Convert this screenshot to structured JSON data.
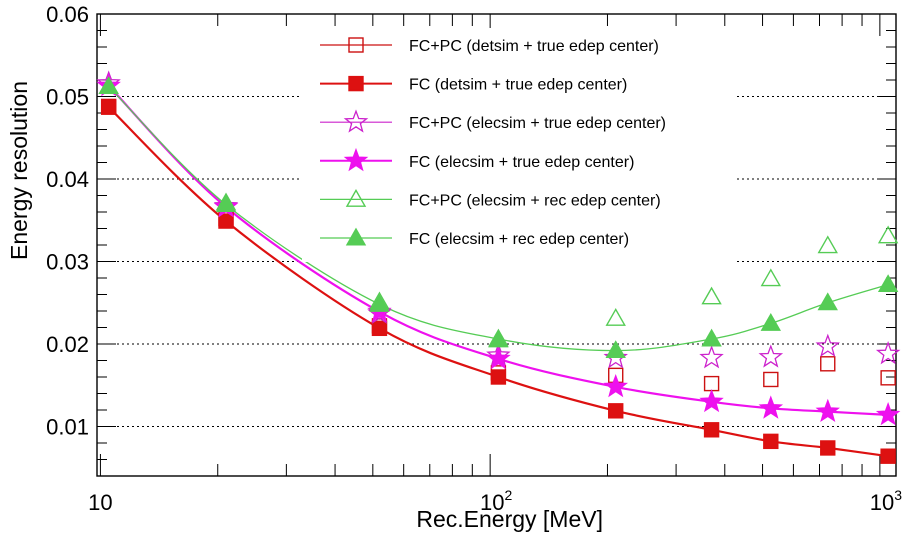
{
  "chart_data": {
    "type": "scatter",
    "title": "",
    "xlabel": "Rec.Energy [MeV]",
    "ylabel": "Energy resolution",
    "xscale": "log",
    "xlim": [
      9.8,
      1100
    ],
    "ylim": [
      0.004,
      0.06
    ],
    "grid": "horizontal dotted",
    "legend_position": "top-right",
    "x_ticks": [
      {
        "value": 10,
        "base": "10",
        "exp": ""
      },
      {
        "value": 100,
        "base": "10",
        "exp": "2"
      },
      {
        "value": 1000,
        "base": "10",
        "exp": "3"
      }
    ],
    "y_ticks": [
      {
        "value": 0.01,
        "label": "0.01"
      },
      {
        "value": 0.02,
        "label": "0.02"
      },
      {
        "value": 0.03,
        "label": "0.03"
      },
      {
        "value": 0.04,
        "label": "0.04"
      },
      {
        "value": 0.05,
        "label": "0.05"
      },
      {
        "value": 0.06,
        "label": "0.06"
      }
    ],
    "series": [
      {
        "name": "FC+PC (detsim + true edep center)",
        "marker": "open-square",
        "color": "#cc1111",
        "line": false,
        "x": [
          10.5,
          21,
          52,
          105,
          210,
          370,
          525,
          735,
          1050
        ],
        "y": [
          0.0488,
          0.0352,
          0.0222,
          0.0165,
          0.0162,
          0.0152,
          0.0157,
          0.0176,
          0.0159
        ]
      },
      {
        "name": "FC (detsim + true edep center)",
        "marker": "filled-square",
        "color": "#dd1111",
        "line": true,
        "curve": "fit",
        "x": [
          10.5,
          21,
          52,
          105,
          210,
          370,
          525,
          735,
          1050
        ],
        "y": [
          0.0487,
          0.0349,
          0.0219,
          0.016,
          0.0119,
          0.0096,
          0.0082,
          0.0074,
          0.0064
        ]
      },
      {
        "name": "FC+PC (elecsim + true edep center)",
        "marker": "open-star",
        "color": "#cc22cc",
        "line": false,
        "x": [
          10.5,
          21,
          52,
          105,
          210,
          370,
          525,
          735,
          1050
        ],
        "y": [
          0.0516,
          0.0367,
          0.0237,
          0.0186,
          0.0183,
          0.0183,
          0.0184,
          0.0197,
          0.0188
        ]
      },
      {
        "name": "FC (elecsim + true edep center)",
        "marker": "filled-star",
        "color": "#ee11ee",
        "line": true,
        "curve": "fit",
        "x": [
          10.5,
          21,
          52,
          105,
          210,
          370,
          525,
          735,
          1050
        ],
        "y": [
          0.0513,
          0.0366,
          0.0239,
          0.0182,
          0.0148,
          0.013,
          0.0122,
          0.0118,
          0.0114
        ]
      },
      {
        "name": "FC+PC (elecsim + rec edep center)",
        "marker": "open-triangle",
        "color": "#55cc55",
        "line": false,
        "x": [
          10.5,
          21,
          52,
          105,
          210,
          370,
          525,
          735,
          1050
        ],
        "y": [
          0.0512,
          0.0371,
          0.0251,
          0.0205,
          0.0231,
          0.0257,
          0.0279,
          0.0319,
          0.0331
        ]
      },
      {
        "name": "FC (elecsim + rec edep center)",
        "marker": "filled-triangle",
        "color": "#55cc55",
        "line": true,
        "curve": "fit",
        "x": [
          10.5,
          21,
          52,
          105,
          210,
          370,
          525,
          735,
          1050
        ],
        "y": [
          0.0512,
          0.0369,
          0.0248,
          0.0206,
          0.0192,
          0.0206,
          0.0225,
          0.025,
          0.0272
        ]
      }
    ]
  }
}
